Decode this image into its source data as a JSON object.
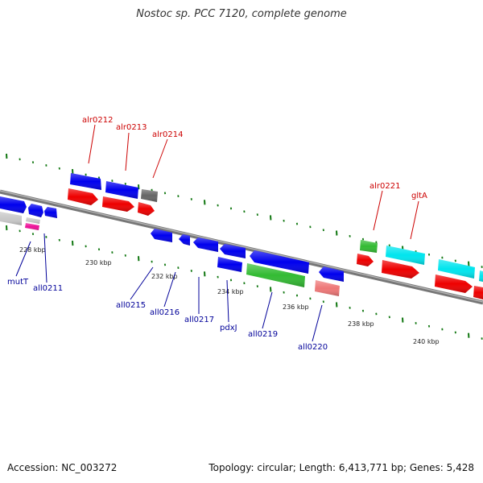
{
  "header": {
    "title": "Nostoc sp. PCC 7120, complete genome"
  },
  "footer": {
    "accession": "Accession: NC_003272",
    "summary": "Topology: circular; Length: 6,413,771 bp; Genes: 5,428"
  },
  "scale_labels": [
    "228 kbp",
    "230 kbp",
    "232 kbp",
    "234 kbp",
    "236 kbp",
    "238 kbp",
    "240 kbp"
  ],
  "forward_gene_labels": [
    "alr0212",
    "alr0213",
    "alr0214",
    "alr0221",
    "gltA"
  ],
  "reverse_gene_labels": [
    "mutT",
    "all0211",
    "all0215",
    "all0216",
    "all0217",
    "pdxJ",
    "all0219",
    "all0220"
  ],
  "colors": {
    "forward_label": "#cc0000",
    "reverse_label": "#000099",
    "cds_blue": "#0000ee",
    "cds_red": "#ee0000",
    "cds_green": "#33bb33",
    "cds_cyan": "#00e5ee",
    "cds_pink": "#ee7777",
    "cds_grey": "#666666",
    "cds_lightgrey": "#c8c8c8",
    "cds_magenta": "#ee1199",
    "tick": "#117711",
    "backbone": "#888888"
  }
}
